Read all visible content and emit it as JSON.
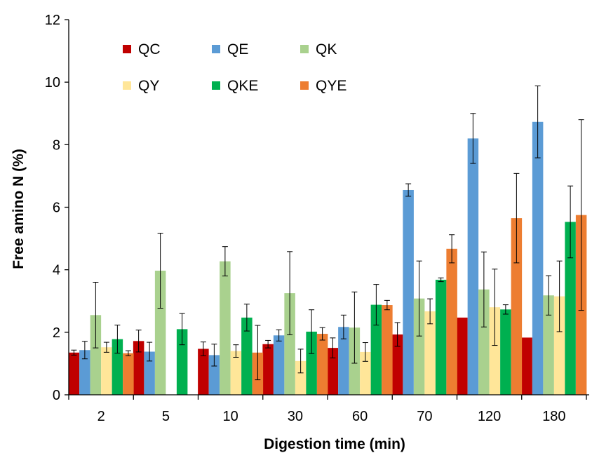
{
  "chart_data": {
    "type": "bar",
    "title": "",
    "xlabel": "Digestion time (min)",
    "ylabel": "Free amino N (%)",
    "categories": [
      "2",
      "5",
      "10",
      "30",
      "60",
      "70",
      "120",
      "180"
    ],
    "ylim": [
      0,
      12
    ],
    "yticks": [
      0,
      2,
      4,
      6,
      8,
      10,
      12
    ],
    "grid": false,
    "legend_position": "top-left",
    "series": [
      {
        "name": "QC",
        "color": "#c00000",
        "values": [
          1.35,
          1.72,
          1.47,
          1.62,
          1.5,
          1.93,
          2.47,
          1.83
        ],
        "errors": [
          0.08,
          0.35,
          0.22,
          0.12,
          0.32,
          0.38,
          0,
          0
        ]
      },
      {
        "name": "QE",
        "color": "#5b9bd5",
        "values": [
          1.43,
          1.38,
          1.27,
          1.9,
          2.17,
          6.55,
          8.2,
          8.73
        ],
        "errors": [
          0.28,
          0.3,
          0.35,
          0.18,
          0.38,
          0.2,
          0.8,
          1.15
        ]
      },
      {
        "name": "QK",
        "color": "#a9d18e",
        "values": [
          2.55,
          3.97,
          4.27,
          3.25,
          2.15,
          3.08,
          3.37,
          3.18
        ],
        "errors": [
          1.05,
          1.2,
          0.47,
          1.33,
          1.14,
          1.2,
          1.2,
          0.63
        ]
      },
      {
        "name": "QY",
        "color": "#ffe699",
        "values": [
          1.52,
          0,
          1.4,
          1.08,
          1.37,
          2.67,
          2.8,
          3.15
        ],
        "errors": [
          0.16,
          0,
          0.2,
          0.38,
          0.3,
          0.4,
          1.22,
          1.13
        ]
      },
      {
        "name": "QKE",
        "color": "#00b050",
        "values": [
          1.78,
          2.1,
          2.47,
          2.02,
          2.88,
          3.68,
          2.73,
          5.53
        ],
        "errors": [
          0.45,
          0.5,
          0.43,
          0.7,
          0.65,
          0.06,
          0.15,
          1.15
        ]
      },
      {
        "name": "QYE",
        "color": "#ed7d31",
        "values": [
          1.33,
          0,
          1.35,
          1.95,
          2.87,
          4.67,
          5.65,
          5.75
        ],
        "errors": [
          0.08,
          0,
          0.87,
          0.2,
          0.15,
          0.45,
          1.43,
          3.05
        ]
      }
    ]
  }
}
